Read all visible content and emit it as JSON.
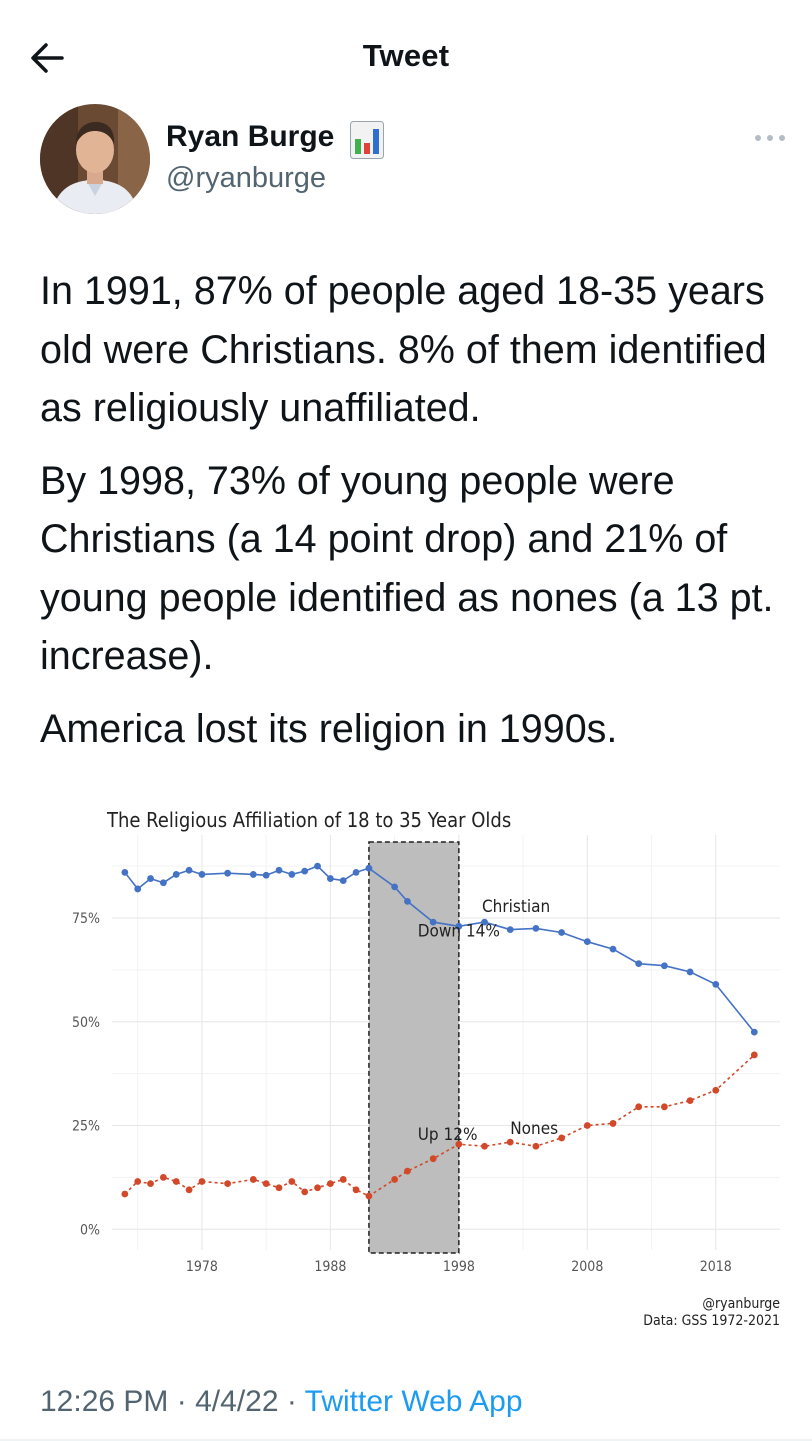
{
  "header": {
    "title": "Tweet",
    "back_icon": "arrow-left-icon"
  },
  "author": {
    "name": "Ryan Burge",
    "handle": "@ryanburge",
    "badge_icon": "bar-chart-emoji-icon",
    "more_icon": "more-horizontal-icon"
  },
  "tweet": {
    "paragraphs": [
      "In 1991, 87% of people aged 18-35 years old were Christians. 8% of them identified as religiously unaffiliated.",
      "By 1998, 73% of young people were Christians (a 14 point drop) and 21% of young people identified as nones (a 13 pt. increase).",
      "America lost its religion in 1990s."
    ]
  },
  "chart_data": {
    "type": "line",
    "title": "The Religious Affiliation of 18 to 35 Year Olds",
    "xlabel": "",
    "ylabel": "",
    "xlim": [
      1971,
      2023
    ],
    "ylim": [
      -5,
      95
    ],
    "x_ticks": [
      1978,
      1988,
      1998,
      2008,
      2018
    ],
    "x_tick_labels": [
      "1978",
      "1988",
      "1998",
      "2008",
      "2018"
    ],
    "y_ticks": [
      0,
      25,
      50,
      75
    ],
    "y_tick_labels": [
      "0%",
      "25%",
      "50%",
      "75%"
    ],
    "grid": true,
    "highlight": {
      "x_start": 1991,
      "x_end": 1998,
      "color": "#bdbdbd"
    },
    "series": [
      {
        "name": "Christian",
        "color": "#4472c4",
        "line_style": "solid",
        "x": [
          1972,
          1973,
          1974,
          1975,
          1976,
          1977,
          1978,
          1980,
          1982,
          1983,
          1984,
          1985,
          1986,
          1987,
          1988,
          1989,
          1990,
          1991,
          1993,
          1994,
          1996,
          1998,
          2000,
          2002,
          2004,
          2006,
          2008,
          2010,
          2012,
          2014,
          2016,
          2018,
          2021
        ],
        "y": [
          86,
          82,
          84.5,
          83.5,
          85.5,
          86.5,
          85.5,
          85.8,
          85.5,
          85.3,
          86.5,
          85.5,
          86.3,
          87.5,
          84.5,
          84,
          86,
          87,
          82.5,
          79,
          74,
          73,
          74,
          72.2,
          72.5,
          71.5,
          69.3,
          67.5,
          64,
          63.5,
          62,
          59,
          47.5
        ]
      },
      {
        "name": "Nones",
        "color": "#d2492a",
        "line_style": "dashed",
        "x": [
          1972,
          1973,
          1974,
          1975,
          1976,
          1977,
          1978,
          1980,
          1982,
          1983,
          1984,
          1985,
          1986,
          1987,
          1988,
          1989,
          1990,
          1991,
          1993,
          1994,
          1996,
          1998,
          2000,
          2002,
          2004,
          2006,
          2008,
          2010,
          2012,
          2014,
          2016,
          2018,
          2021
        ],
        "y": [
          8.5,
          11.5,
          11,
          12.5,
          11.5,
          9.5,
          11.5,
          11,
          12,
          11,
          10,
          11.5,
          9,
          10,
          11,
          12,
          9.5,
          8,
          12,
          14,
          17,
          20.5,
          20,
          21,
          20,
          22,
          25,
          25.5,
          29.5,
          29.5,
          31,
          33.5,
          42
        ]
      }
    ],
    "annotations": [
      {
        "text": "Christian",
        "x": 1999.8,
        "y": 76.5
      },
      {
        "text": "Down 14%",
        "x": 1994.8,
        "y": 70.5
      },
      {
        "text": "Nones",
        "x": 2002,
        "y": 23
      },
      {
        "text": "Up 12%",
        "x": 1994.8,
        "y": 21.5
      }
    ],
    "caption": [
      "@ryanburge",
      "Data: GSS 1972-2021"
    ]
  },
  "footer": {
    "time": "12:26 PM",
    "sep": "·",
    "date": "4/4/22",
    "source": "Twitter Web App"
  }
}
